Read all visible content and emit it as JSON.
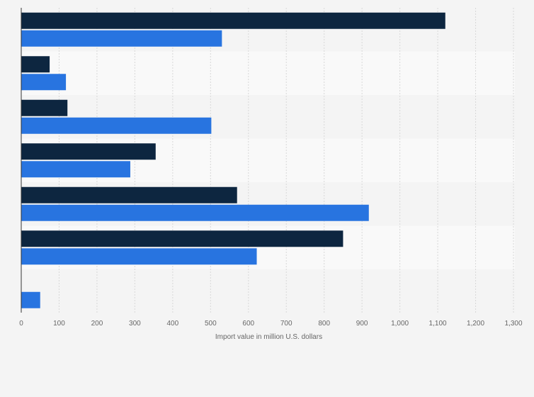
{
  "chart_data": {
    "type": "bar",
    "orientation": "horizontal",
    "title": "",
    "xlabel": "Import value in million U.S. dollars",
    "ylabel": "",
    "categories": [
      "",
      "",
      "",
      "",
      "",
      "",
      ""
    ],
    "series": [
      {
        "name": "",
        "color": "#0d2640",
        "values": [
          1120,
          75,
          122,
          355,
          570,
          850,
          null
        ]
      },
      {
        "name": "",
        "color": "#2874e0",
        "values": [
          530,
          118,
          502,
          288,
          918,
          622,
          50
        ]
      }
    ],
    "xlim": [
      0,
      1300
    ],
    "xticks": [
      0,
      100,
      200,
      300,
      400,
      500,
      600,
      700,
      800,
      900,
      1000,
      1100,
      1200,
      1300
    ],
    "xtick_labels": [
      "0",
      "100",
      "200",
      "300",
      "400",
      "500",
      "600",
      "700",
      "800",
      "900",
      "1,000",
      "1,100",
      "1,200",
      "1,300"
    ],
    "grid": true,
    "legend": "none",
    "band_colors": [
      "#f4f4f4",
      "#f9f9f9"
    ]
  }
}
